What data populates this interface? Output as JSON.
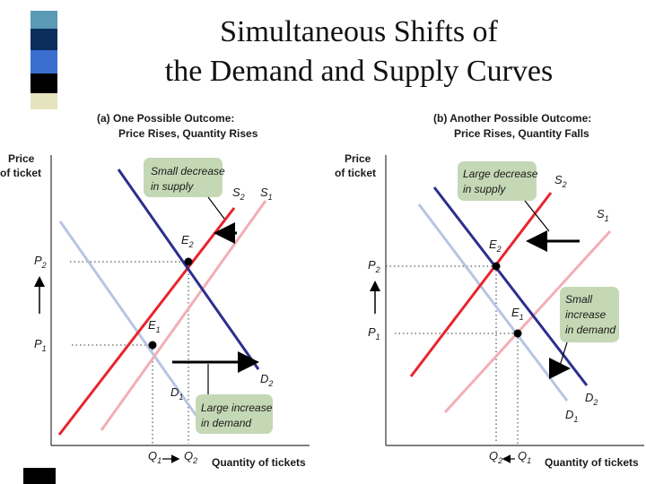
{
  "slide": {
    "title_line1": "Simultaneous Shifts of",
    "title_line2": "the Demand and Supply Curves"
  },
  "decor": {
    "square_colors": [
      "#5b9ab5",
      "#0b2e5e",
      "#3a6fd0",
      "#000000",
      "#e6e3bf"
    ]
  },
  "colors": {
    "supply_new": "#e8252c",
    "supply_old": "#f2aeb6",
    "demand_new": "#2b2f8f",
    "demand_old": "#b6c6e2",
    "callout_fill": "#c5d8b5"
  },
  "panel_a": {
    "heading_line1": "(a) One Possible Outcome:",
    "heading_line2": "Price Rises, Quantity Rises",
    "y_label_line1": "Price",
    "y_label_line2": "of ticket",
    "x_label": "Quantity of tickets",
    "callout_top_line1": "Small decrease",
    "callout_top_line2": "in supply",
    "callout_bottom_line1": "Large increase",
    "callout_bottom_line2": "in demand",
    "curve_labels": {
      "S2": "S",
      "S2_sub": "2",
      "S1": "S",
      "S1_sub": "1",
      "D1": "D",
      "D1_sub": "1",
      "D2": "D",
      "D2_sub": "2",
      "E1": "E",
      "E1_sub": "1",
      "E2": "E",
      "E2_sub": "2",
      "P1": "P",
      "P1_sub": "1",
      "P2": "P",
      "P2_sub": "2",
      "Q1": "Q",
      "Q1_sub": "1",
      "Q2": "Q",
      "Q2_sub": "2"
    }
  },
  "panel_b": {
    "heading_line1": "(b) Another Possible Outcome:",
    "heading_line2": "Price Rises, Quantity Falls",
    "y_label_line1": "Price",
    "y_label_line2": "of ticket",
    "x_label": "Quantity of tickets",
    "callout_top_line1": "Large decrease",
    "callout_top_line2": "in supply",
    "callout_right_line1": "Small",
    "callout_right_line2": "increase",
    "callout_right_line3": "in demand",
    "curve_labels": {
      "S2": "S",
      "S2_sub": "2",
      "S1": "S",
      "S1_sub": "1",
      "D1": "D",
      "D1_sub": "1",
      "D2": "D",
      "D2_sub": "2",
      "E1": "E",
      "E1_sub": "1",
      "E2": "E",
      "E2_sub": "2",
      "P1": "P",
      "P1_sub": "1",
      "P2": "P",
      "P2_sub": "2",
      "Q1": "Q",
      "Q1_sub": "1",
      "Q2": "Q",
      "Q2_sub": "2"
    }
  }
}
